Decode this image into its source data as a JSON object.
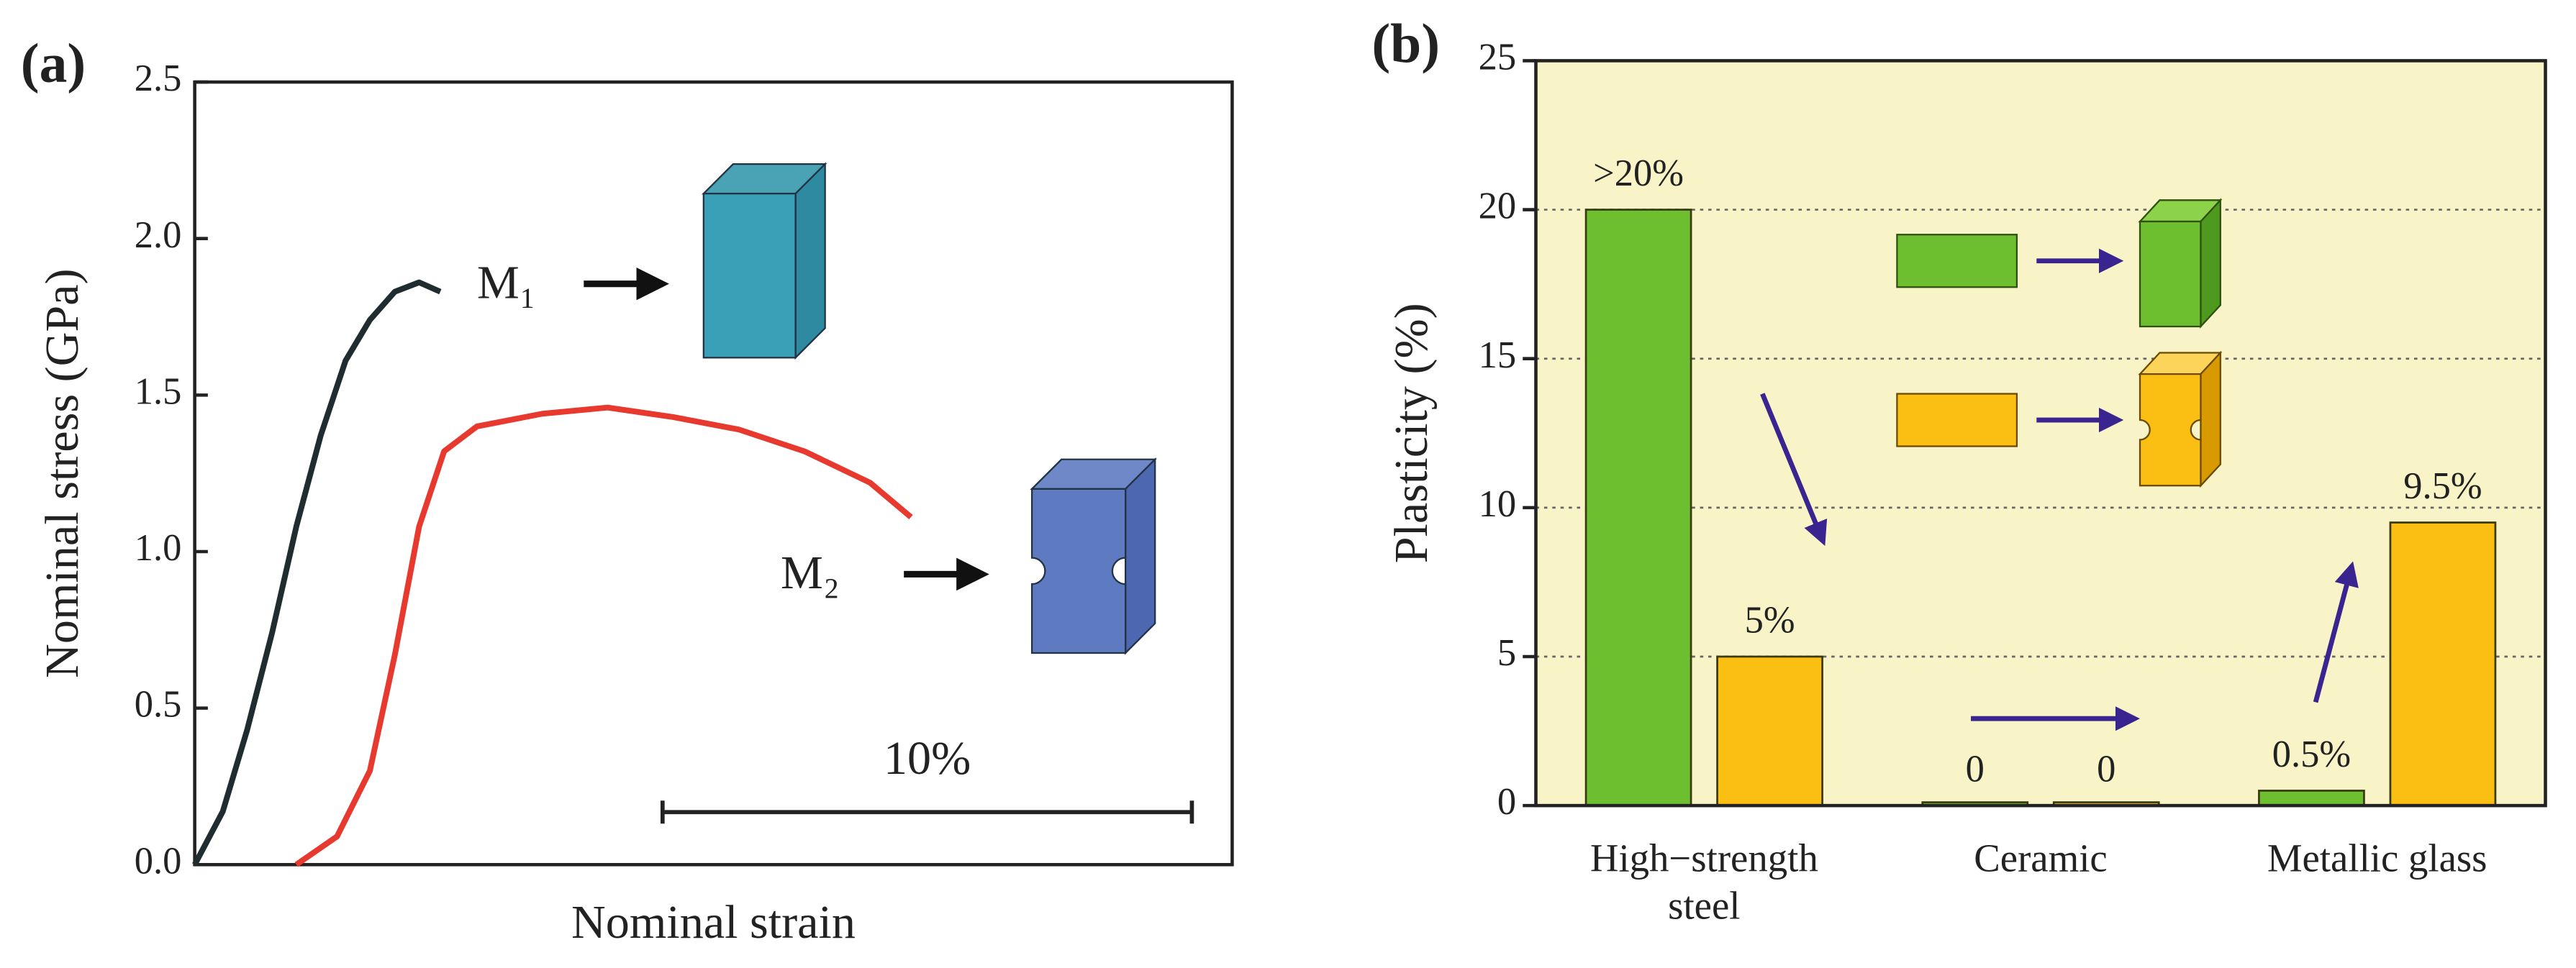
{
  "chart_data": [
    {
      "type": "line",
      "panel_label": "(a)",
      "x_label": "Nominal strain",
      "y_label": "Nominal stress (GPa)",
      "xlim": [
        0,
        19.6
      ],
      "ylim": [
        0,
        2.5
      ],
      "yticks": [
        {
          "value": 0,
          "label": "0.0"
        },
        0.5,
        {
          "value": 1,
          "label": "1.0"
        },
        1.5,
        {
          "value": 2,
          "label": "2.0"
        },
        2.5
      ],
      "series": [
        {
          "name": "M₁",
          "color": "#1f2d30",
          "x": [
            0,
            0.53,
            0.99,
            1.46,
            1.92,
            2.38,
            2.85,
            3.31,
            3.78,
            4.24,
            4.64
          ],
          "values": [
            0,
            0.17,
            0.43,
            0.74,
            1.08,
            1.37,
            1.61,
            1.74,
            1.83,
            1.86,
            1.83
          ]
        },
        {
          "name": "M₂",
          "color": "#e8392f",
          "x": [
            1.92,
            2.69,
            3.31,
            3.78,
            4.24,
            4.71,
            5.33,
            6.56,
            7.8,
            9.04,
            10.28,
            11.52,
            12.76,
            13.53
          ],
          "values": [
            0,
            0.09,
            0.3,
            0.67,
            1.08,
            1.32,
            1.4,
            1.44,
            1.46,
            1.43,
            1.39,
            1.32,
            1.22,
            1.11
          ]
        }
      ],
      "scale_bar": {
        "value": 10,
        "label": "10%"
      }
    },
    {
      "type": "bar",
      "panel_label": "(b)",
      "y_label": "Plasticity (%)",
      "categories": [
        "High−strength steel",
        "Ceramic",
        "Metallic glass"
      ],
      "ylim": [
        0,
        25
      ],
      "yticks": [
        0,
        5,
        10,
        15,
        20,
        25
      ],
      "grid": true,
      "series": [
        {
          "color": "#6dbf2f",
          "values": [
            20,
            0,
            0.5
          ],
          "value_labels": [
            ">20%",
            "0",
            "0.5%"
          ]
        },
        {
          "color": "#fbbe12",
          "values": [
            5,
            0,
            9.5
          ],
          "value_labels": [
            "5%",
            "0",
            "9.5%"
          ]
        }
      ]
    }
  ]
}
